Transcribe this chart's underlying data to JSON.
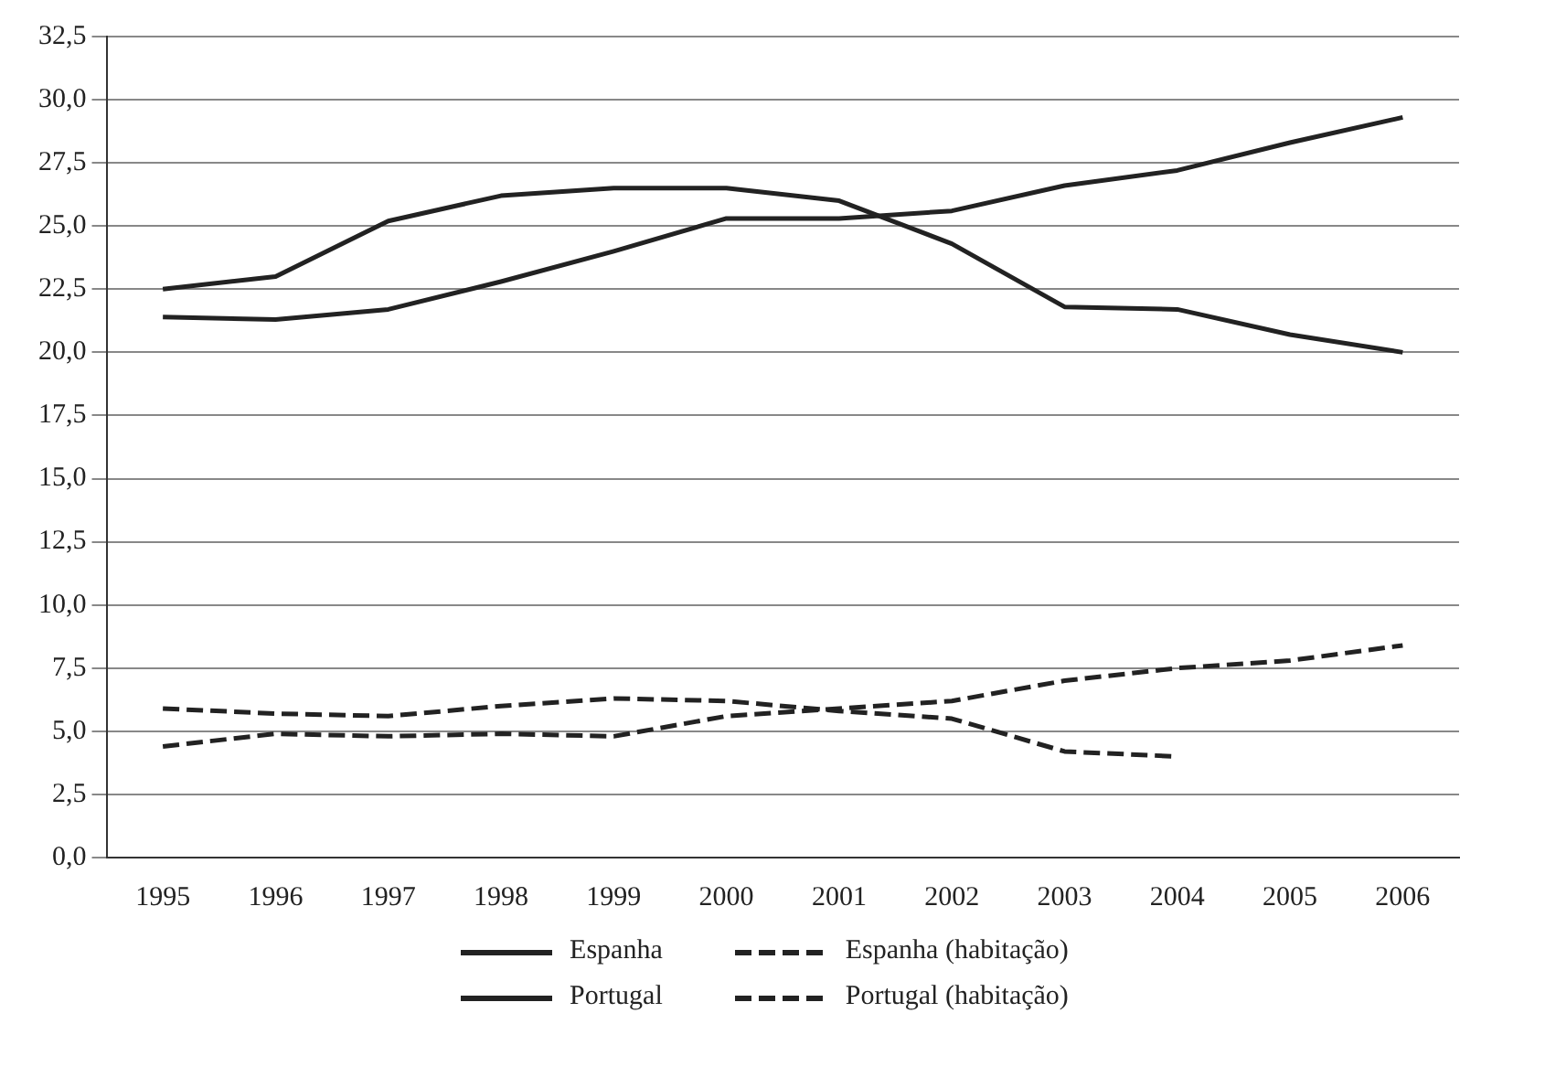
{
  "chart_data": {
    "type": "line",
    "categories": [
      "1995",
      "1996",
      "1997",
      "1998",
      "1999",
      "2000",
      "2001",
      "2002",
      "2003",
      "2004",
      "2005",
      "2006"
    ],
    "series": [
      {
        "name": "Espanha",
        "color": "#222222",
        "line_style": "solid",
        "values": [
          22.5,
          23.0,
          25.2,
          26.2,
          26.5,
          26.5,
          26.0,
          24.3,
          21.8,
          21.7,
          20.7,
          20.0
        ]
      },
      {
        "name": "Espanha (habitação)",
        "color": "#222222",
        "line_style": "dashed",
        "values": [
          5.9,
          5.7,
          5.6,
          6.0,
          6.3,
          6.2,
          5.8,
          5.5,
          4.2,
          4.0,
          null,
          null
        ]
      },
      {
        "name": "Portugal",
        "color": "#222222",
        "line_style": "solid",
        "values": [
          21.4,
          21.3,
          21.7,
          22.8,
          24.0,
          25.3,
          25.3,
          25.6,
          26.6,
          27.2,
          28.3,
          29.3
        ]
      },
      {
        "name": "Portugal (habitação)",
        "color": "#222222",
        "line_style": "dashed",
        "values": [
          4.4,
          4.9,
          4.8,
          4.9,
          4.8,
          5.6,
          5.9,
          6.2,
          7.0,
          7.5,
          7.8,
          8.4
        ]
      }
    ],
    "ylim": [
      0,
      32.5
    ],
    "yticks": [
      {
        "value": 0,
        "label": "0,0"
      },
      {
        "value": 2.5,
        "label": "2,5"
      },
      {
        "value": 5,
        "label": "5,0"
      },
      {
        "value": 7.5,
        "label": "7,5"
      },
      {
        "value": 10,
        "label": "10,0"
      },
      {
        "value": 12.5,
        "label": "12,5"
      },
      {
        "value": 15,
        "label": "15,0"
      },
      {
        "value": 17.5,
        "label": "17,5"
      },
      {
        "value": 20,
        "label": "20,0"
      },
      {
        "value": 22.5,
        "label": "22,5"
      },
      {
        "value": 25,
        "label": "25,0"
      },
      {
        "value": 27.5,
        "label": "27,5"
      },
      {
        "value": 30,
        "label": "30,0"
      },
      {
        "value": 32.5,
        "label": "32,5"
      }
    ],
    "grid": "y",
    "legend": "bottom",
    "marker": "none"
  }
}
